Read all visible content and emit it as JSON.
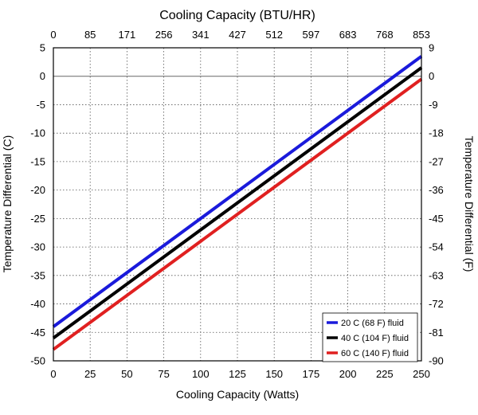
{
  "chart_data": {
    "type": "line",
    "title": "Cooling Capacity (BTU/HR)",
    "xlabel": "Cooling Capacity (Watts)",
    "ylabel_left": "Temperature Differential (C)",
    "ylabel_right": "Temperature Differential (F)",
    "xlim": [
      0,
      250
    ],
    "ylim": [
      -50,
      5
    ],
    "grid": true,
    "legend_position": "bottom-right",
    "x_ticks": [
      0,
      25,
      50,
      75,
      100,
      125,
      150,
      175,
      200,
      225,
      250
    ],
    "x_tick_labels": [
      "0",
      "25",
      "50",
      "75",
      "100",
      "125",
      "150",
      "175",
      "200",
      "225",
      "250"
    ],
    "top_tick_labels": [
      "0",
      "85",
      "171",
      "256",
      "341",
      "427",
      "512",
      "597",
      "683",
      "768",
      "853"
    ],
    "y_ticks": [
      5,
      0,
      -5,
      -10,
      -15,
      -20,
      -25,
      -30,
      -35,
      -40,
      -45,
      -50
    ],
    "y_tick_labels": [
      "5",
      "0",
      "-5",
      "-10",
      "-15",
      "-20",
      "-25",
      "-30",
      "-35",
      "-40",
      "-45",
      "-50"
    ],
    "right_tick_labels": [
      "9",
      "0",
      "-9",
      "-18",
      "-27",
      "-36",
      "-45",
      "-54",
      "-63",
      "-72",
      "-81",
      "-90"
    ],
    "zero_line": 0,
    "series": [
      {
        "name": "20 C (68 F) fluid",
        "color": "#1a1adb",
        "x": [
          0,
          250
        ],
        "y": [
          -44,
          3.5
        ]
      },
      {
        "name": "40 C (104 F) fluid",
        "color": "#000000",
        "x": [
          0,
          250
        ],
        "y": [
          -46,
          1.5
        ]
      },
      {
        "name": "60 C (140 F) fluid",
        "color": "#e02020",
        "x": [
          0,
          250
        ],
        "y": [
          -48,
          -0.5
        ]
      }
    ]
  }
}
